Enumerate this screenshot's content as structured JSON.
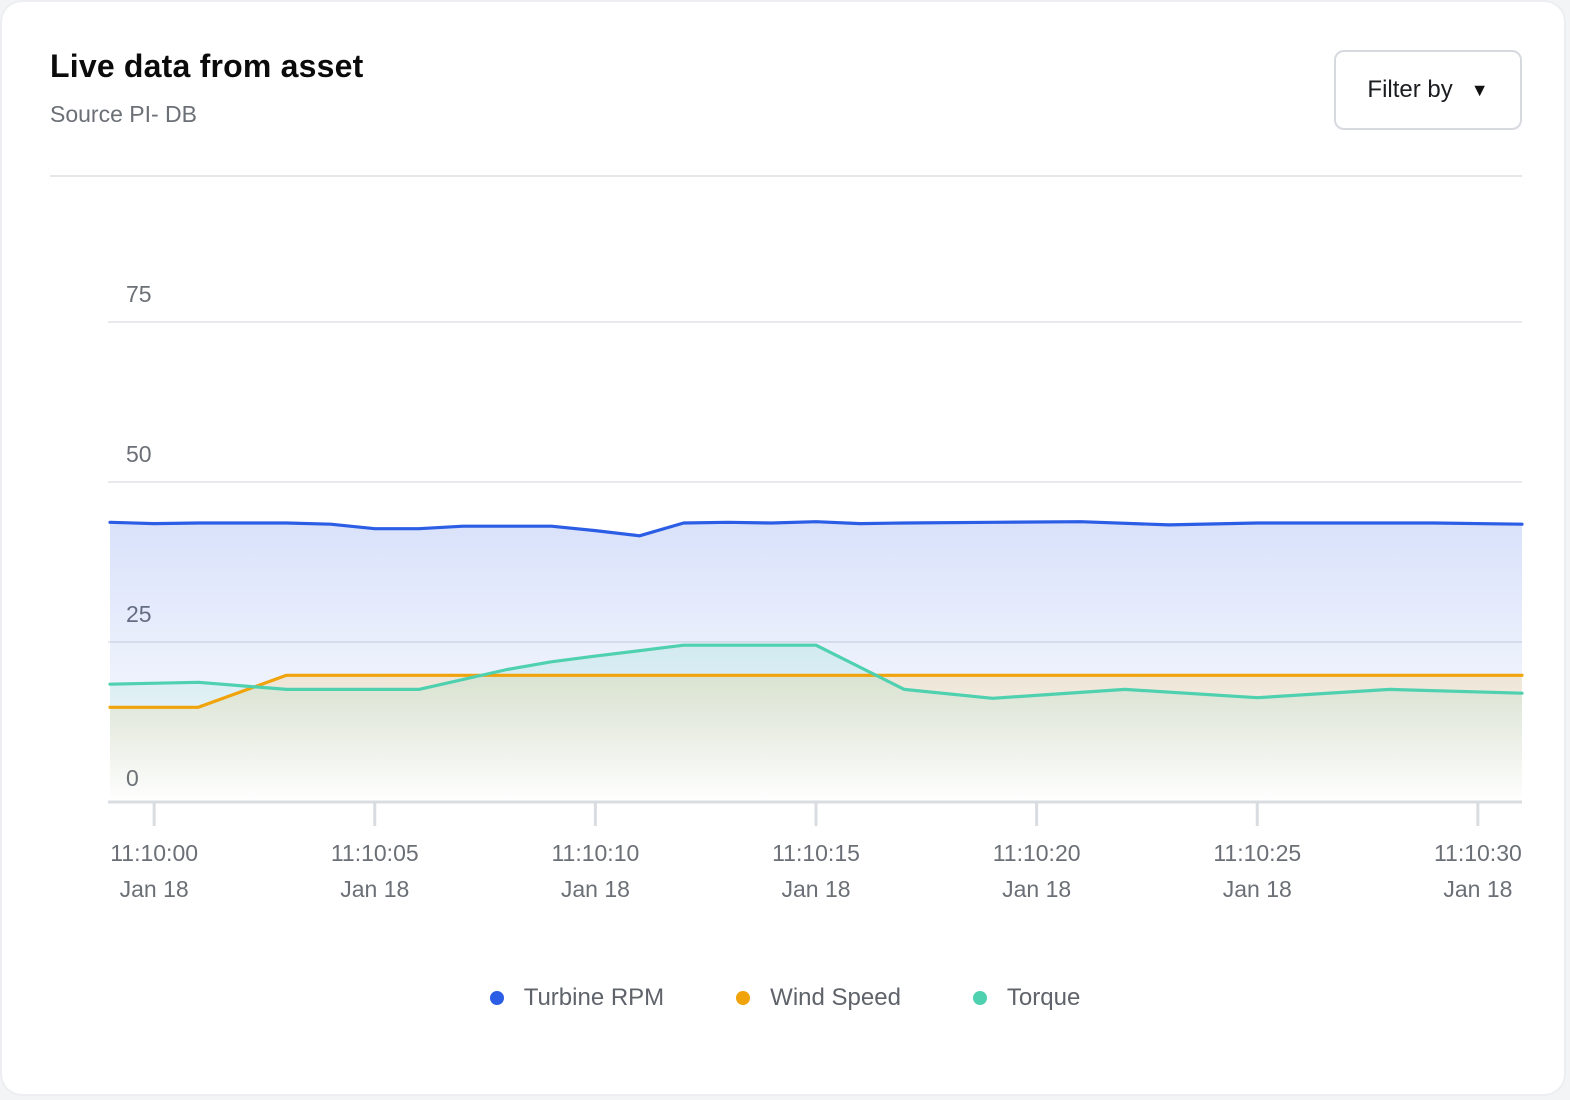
{
  "header": {
    "title": "Live data from asset",
    "subtitle": "Source PI- DB",
    "filter_label": "Filter by"
  },
  "icons": {
    "filter_caret": "caret-down-icon",
    "legend_marker": "dot-icon"
  },
  "colors": {
    "turbine_rpm": "#2c5de5",
    "wind_speed": "#f0a30a",
    "torque": "#4fd1b0"
  },
  "chart_data": {
    "type": "area",
    "title": "Live data from asset",
    "xlabel": "",
    "ylabel": "",
    "ylim": [
      0,
      75
    ],
    "yticks": [
      0,
      25,
      50,
      75
    ],
    "xlim": [
      "11:09:59",
      "11:10:31"
    ],
    "xticks": [
      {
        "time": "11:10:00",
        "date": "Jan 18"
      },
      {
        "time": "11:10:05",
        "date": "Jan 18"
      },
      {
        "time": "11:10:10",
        "date": "Jan 18"
      },
      {
        "time": "11:10:15",
        "date": "Jan 18"
      },
      {
        "time": "11:10:20",
        "date": "Jan 18"
      },
      {
        "time": "11:10:25",
        "date": "Jan 18"
      },
      {
        "time": "11:10:30",
        "date": "Jan 18"
      }
    ],
    "grid": true,
    "legend_position": "bottom-center",
    "series": [
      {
        "name": "Turbine RPM",
        "x": [
          "11:09:59",
          "11:10:00",
          "11:10:01",
          "11:10:03",
          "11:10:04",
          "11:10:05",
          "11:10:06",
          "11:10:07",
          "11:10:09",
          "11:10:10",
          "11:10:11",
          "11:10:12",
          "11:10:13",
          "11:10:14",
          "11:10:15",
          "11:10:16",
          "11:10:17",
          "11:10:19",
          "11:10:21",
          "11:10:23",
          "11:10:25",
          "11:10:27",
          "11:10:29",
          "11:10:31"
        ],
        "values": [
          43.7,
          43.5,
          43.6,
          43.6,
          43.4,
          42.7,
          42.7,
          43.1,
          43.1,
          42.4,
          41.6,
          43.6,
          43.7,
          43.6,
          43.8,
          43.5,
          43.6,
          43.7,
          43.8,
          43.3,
          43.6,
          43.6,
          43.6,
          43.4
        ]
      },
      {
        "name": "Wind Speed",
        "x": [
          "11:09:59",
          "11:10:01",
          "11:10:03",
          "11:10:05",
          "11:10:10",
          "11:10:15",
          "11:10:20",
          "11:10:25",
          "11:10:31"
        ],
        "values": [
          14.8,
          14.8,
          19.8,
          19.8,
          19.8,
          19.8,
          19.8,
          19.8,
          19.8
        ]
      },
      {
        "name": "Torque",
        "x": [
          "11:09:59",
          "11:10:01",
          "11:10:03",
          "11:10:06",
          "11:10:08",
          "11:10:09",
          "11:10:10",
          "11:10:12",
          "11:10:15",
          "11:10:17",
          "11:10:19",
          "11:10:22",
          "11:10:25",
          "11:10:28",
          "11:10:31"
        ],
        "values": [
          18.4,
          18.7,
          17.6,
          17.6,
          20.7,
          21.9,
          22.8,
          24.5,
          24.5,
          17.6,
          16.2,
          17.6,
          16.3,
          17.6,
          17.0
        ]
      }
    ]
  }
}
